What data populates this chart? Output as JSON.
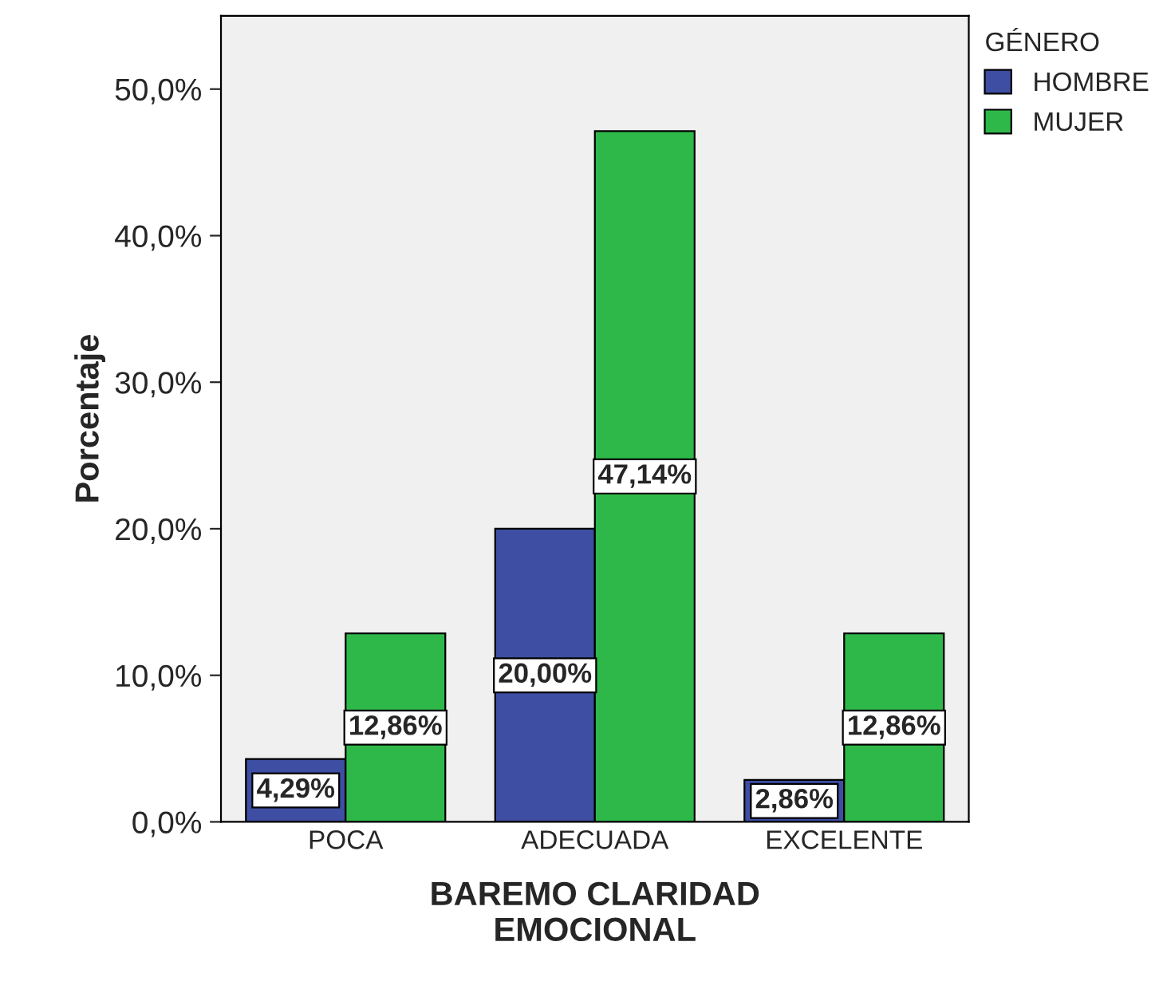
{
  "chart_data": {
    "type": "bar",
    "xlabel": "BAREMO CLARIDAD\nEMOCIONAL",
    "ylabel": "Porcentaje",
    "legend_title": "GÉNERO",
    "legend": "top right",
    "categories": [
      "POCA",
      "ADECUADA",
      "EXCELENTE"
    ],
    "series": [
      {
        "name": "HOMBRE",
        "color": "#3e4ea3",
        "values": [
          4.29,
          20.0,
          2.86
        ],
        "value_labels": [
          "4,29%",
          "20,00%",
          "2,86%"
        ]
      },
      {
        "name": "MUJER",
        "color": "#2fb84a",
        "values": [
          12.86,
          47.14,
          12.86
        ],
        "value_labels": [
          "12,86%",
          "47,14%",
          "12,86%"
        ]
      }
    ],
    "ylim": [
      0,
      55
    ],
    "yticks": [
      {
        "value": 0,
        "label": "0,0%"
      },
      {
        "value": 10,
        "label": "10,0%"
      },
      {
        "value": 20,
        "label": "20,0%"
      },
      {
        "value": 30,
        "label": "30,0%"
      },
      {
        "value": 40,
        "label": "40,0%"
      },
      {
        "value": 50,
        "label": "50,0%"
      }
    ],
    "grid": false
  }
}
